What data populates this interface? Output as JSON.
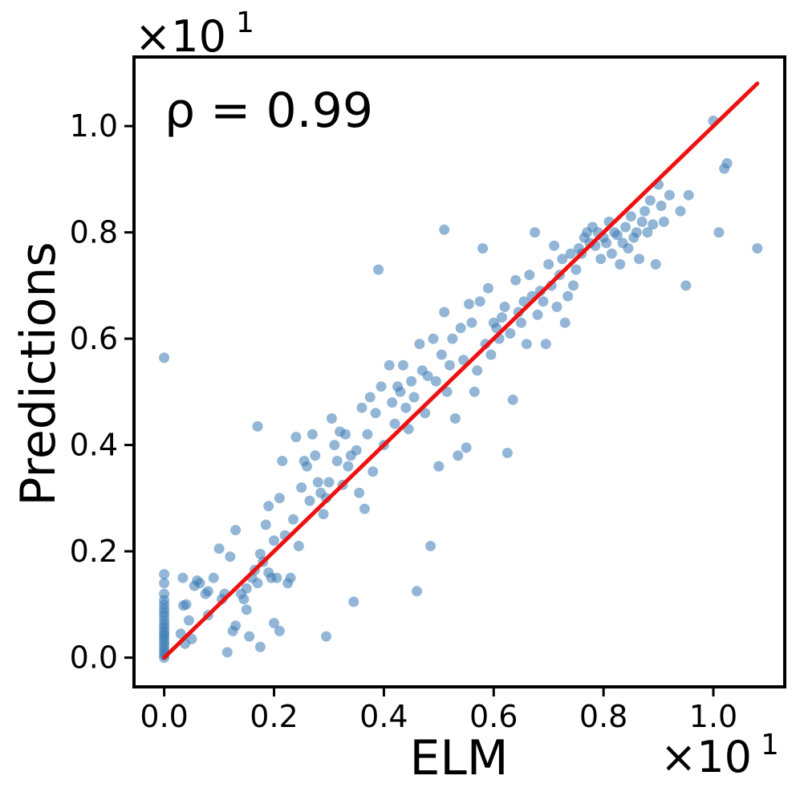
{
  "chart_data": {
    "type": "scatter",
    "xlabel": "ELM",
    "ylabel": "Predictions",
    "x_offset_text": "×10",
    "x_offset_exp": "1",
    "y_offset_text": "×10",
    "y_offset_exp": "1",
    "annotation": "ρ = 0.99",
    "xlim": [
      -0.055,
      1.13
    ],
    "ylim": [
      -0.055,
      1.13
    ],
    "x_ticks": [
      0.0,
      0.2,
      0.4,
      0.6,
      0.8,
      1.0
    ],
    "x_tick_labels": [
      "0.0",
      "0.2",
      "0.4",
      "0.6",
      "0.8",
      "1.0"
    ],
    "y_ticks": [
      0.0,
      0.2,
      0.4,
      0.6,
      0.8,
      1.0
    ],
    "y_tick_labels": [
      "0.0",
      "0.2",
      "0.4",
      "0.6",
      "0.8",
      "1.0"
    ],
    "grid": false,
    "fit_line": {
      "x": [
        0.0,
        1.08
      ],
      "y": [
        0.0,
        1.08
      ],
      "color": "#ee1111"
    },
    "point_color": "#3a7ab5",
    "series": [
      {
        "points": [
          [
            0.0,
            0.564
          ],
          [
            0.0,
            0.157
          ],
          [
            0.0,
            0.14
          ],
          [
            0.0,
            0.12
          ],
          [
            0.0,
            0.108
          ],
          [
            0.0,
            0.1
          ],
          [
            0.0,
            0.092
          ],
          [
            0.0,
            0.085
          ],
          [
            0.0,
            0.078
          ],
          [
            0.0,
            0.07
          ],
          [
            0.0,
            0.063
          ],
          [
            0.0,
            0.057
          ],
          [
            0.0,
            0.05
          ],
          [
            0.0,
            0.045
          ],
          [
            0.0,
            0.04
          ],
          [
            0.0,
            0.034
          ],
          [
            0.0,
            0.028
          ],
          [
            0.0,
            0.022
          ],
          [
            0.0,
            0.016
          ],
          [
            0.0,
            0.01
          ],
          [
            0.0,
            0.005
          ],
          [
            0.0,
            0.0
          ],
          [
            0.03,
            0.045
          ],
          [
            0.034,
            0.15
          ],
          [
            0.035,
            0.098
          ],
          [
            0.038,
            0.026
          ],
          [
            0.04,
            0.1
          ],
          [
            0.045,
            0.07
          ],
          [
            0.05,
            0.035
          ],
          [
            0.055,
            0.135
          ],
          [
            0.06,
            0.145
          ],
          [
            0.065,
            0.14
          ],
          [
            0.075,
            0.12
          ],
          [
            0.08,
            0.125
          ],
          [
            0.08,
            0.08
          ],
          [
            0.09,
            0.15
          ],
          [
            0.1,
            0.205
          ],
          [
            0.105,
            0.11
          ],
          [
            0.11,
            0.12
          ],
          [
            0.115,
            0.01
          ],
          [
            0.12,
            0.19
          ],
          [
            0.125,
            0.05
          ],
          [
            0.13,
            0.24
          ],
          [
            0.13,
            0.06
          ],
          [
            0.14,
            0.12
          ],
          [
            0.145,
            0.11
          ],
          [
            0.15,
            0.09
          ],
          [
            0.15,
            0.13
          ],
          [
            0.155,
            0.04
          ],
          [
            0.16,
            0.15
          ],
          [
            0.165,
            0.165
          ],
          [
            0.17,
            0.14
          ],
          [
            0.17,
            0.435
          ],
          [
            0.175,
            0.195
          ],
          [
            0.175,
            0.02
          ],
          [
            0.18,
            0.18
          ],
          [
            0.185,
            0.25
          ],
          [
            0.19,
            0.285
          ],
          [
            0.19,
            0.16
          ],
          [
            0.195,
            0.15
          ],
          [
            0.2,
            0.22
          ],
          [
            0.2,
            0.065
          ],
          [
            0.205,
            0.15
          ],
          [
            0.21,
            0.3
          ],
          [
            0.21,
            0.05
          ],
          [
            0.215,
            0.37
          ],
          [
            0.22,
            0.23
          ],
          [
            0.225,
            0.14
          ],
          [
            0.23,
            0.15
          ],
          [
            0.235,
            0.26
          ],
          [
            0.24,
            0.415
          ],
          [
            0.245,
            0.21
          ],
          [
            0.25,
            0.32
          ],
          [
            0.255,
            0.37
          ],
          [
            0.26,
            0.36
          ],
          [
            0.265,
            0.295
          ],
          [
            0.27,
            0.42
          ],
          [
            0.275,
            0.38
          ],
          [
            0.28,
            0.33
          ],
          [
            0.285,
            0.31
          ],
          [
            0.29,
            0.27
          ],
          [
            0.295,
            0.04
          ],
          [
            0.295,
            0.3
          ],
          [
            0.3,
            0.33
          ],
          [
            0.305,
            0.45
          ],
          [
            0.31,
            0.4
          ],
          [
            0.315,
            0.37
          ],
          [
            0.32,
            0.425
          ],
          [
            0.325,
            0.325
          ],
          [
            0.33,
            0.42
          ],
          [
            0.335,
            0.36
          ],
          [
            0.34,
            0.38
          ],
          [
            0.345,
            0.105
          ],
          [
            0.35,
            0.39
          ],
          [
            0.355,
            0.31
          ],
          [
            0.36,
            0.47
          ],
          [
            0.365,
            0.28
          ],
          [
            0.37,
            0.42
          ],
          [
            0.375,
            0.49
          ],
          [
            0.38,
            0.35
          ],
          [
            0.385,
            0.46
          ],
          [
            0.39,
            0.73
          ],
          [
            0.395,
            0.51
          ],
          [
            0.4,
            0.4
          ],
          [
            0.41,
            0.55
          ],
          [
            0.415,
            0.48
          ],
          [
            0.42,
            0.44
          ],
          [
            0.425,
            0.51
          ],
          [
            0.43,
            0.5
          ],
          [
            0.435,
            0.55
          ],
          [
            0.44,
            0.47
          ],
          [
            0.445,
            0.43
          ],
          [
            0.45,
            0.52
          ],
          [
            0.455,
            0.49
          ],
          [
            0.46,
            0.125
          ],
          [
            0.465,
            0.59
          ],
          [
            0.47,
            0.54
          ],
          [
            0.475,
            0.46
          ],
          [
            0.48,
            0.53
          ],
          [
            0.485,
            0.21
          ],
          [
            0.49,
            0.6
          ],
          [
            0.495,
            0.52
          ],
          [
            0.5,
            0.36
          ],
          [
            0.505,
            0.57
          ],
          [
            0.51,
            0.805
          ],
          [
            0.51,
            0.65
          ],
          [
            0.515,
            0.5
          ],
          [
            0.52,
            0.55
          ],
          [
            0.525,
            0.6
          ],
          [
            0.53,
            0.45
          ],
          [
            0.535,
            0.38
          ],
          [
            0.54,
            0.62
          ],
          [
            0.545,
            0.56
          ],
          [
            0.55,
            0.395
          ],
          [
            0.555,
            0.665
          ],
          [
            0.56,
            0.63
          ],
          [
            0.565,
            0.5
          ],
          [
            0.57,
            0.54
          ],
          [
            0.575,
            0.67
          ],
          [
            0.58,
            0.77
          ],
          [
            0.585,
            0.59
          ],
          [
            0.59,
            0.695
          ],
          [
            0.595,
            0.57
          ],
          [
            0.6,
            0.63
          ],
          [
            0.605,
            0.62
          ],
          [
            0.61,
            0.6
          ],
          [
            0.615,
            0.64
          ],
          [
            0.62,
            0.66
          ],
          [
            0.625,
            0.385
          ],
          [
            0.63,
            0.61
          ],
          [
            0.635,
            0.485
          ],
          [
            0.64,
            0.71
          ],
          [
            0.645,
            0.65
          ],
          [
            0.65,
            0.63
          ],
          [
            0.655,
            0.67
          ],
          [
            0.66,
            0.59
          ],
          [
            0.665,
            0.72
          ],
          [
            0.67,
            0.68
          ],
          [
            0.675,
            0.8
          ],
          [
            0.68,
            0.645
          ],
          [
            0.685,
            0.69
          ],
          [
            0.69,
            0.67
          ],
          [
            0.695,
            0.59
          ],
          [
            0.7,
            0.74
          ],
          [
            0.705,
            0.7
          ],
          [
            0.71,
            0.775
          ],
          [
            0.715,
            0.66
          ],
          [
            0.72,
            0.72
          ],
          [
            0.725,
            0.75
          ],
          [
            0.73,
            0.63
          ],
          [
            0.735,
            0.68
          ],
          [
            0.74,
            0.76
          ],
          [
            0.745,
            0.7
          ],
          [
            0.75,
            0.73
          ],
          [
            0.755,
            0.77
          ],
          [
            0.76,
            0.76
          ],
          [
            0.765,
            0.79
          ],
          [
            0.77,
            0.8
          ],
          [
            0.775,
            0.78
          ],
          [
            0.78,
            0.81
          ],
          [
            0.785,
            0.775
          ],
          [
            0.79,
            0.8
          ],
          [
            0.795,
            0.75
          ],
          [
            0.8,
            0.79
          ],
          [
            0.805,
            0.78
          ],
          [
            0.81,
            0.82
          ],
          [
            0.815,
            0.76
          ],
          [
            0.82,
            0.8
          ],
          [
            0.825,
            0.795
          ],
          [
            0.83,
            0.74
          ],
          [
            0.835,
            0.78
          ],
          [
            0.84,
            0.81
          ],
          [
            0.845,
            0.77
          ],
          [
            0.85,
            0.83
          ],
          [
            0.855,
            0.79
          ],
          [
            0.86,
            0.8
          ],
          [
            0.865,
            0.75
          ],
          [
            0.87,
            0.82
          ],
          [
            0.875,
            0.84
          ],
          [
            0.88,
            0.8
          ],
          [
            0.885,
            0.86
          ],
          [
            0.89,
            0.815
          ],
          [
            0.895,
            0.74
          ],
          [
            0.9,
            0.89
          ],
          [
            0.905,
            0.85
          ],
          [
            0.91,
            0.82
          ],
          [
            0.92,
            0.87
          ],
          [
            0.94,
            0.84
          ],
          [
            0.95,
            0.7
          ],
          [
            0.955,
            0.87
          ],
          [
            1.0,
            1.01
          ],
          [
            1.01,
            0.8
          ],
          [
            1.02,
            0.92
          ],
          [
            1.025,
            0.93
          ],
          [
            1.08,
            0.77
          ]
        ]
      }
    ]
  }
}
